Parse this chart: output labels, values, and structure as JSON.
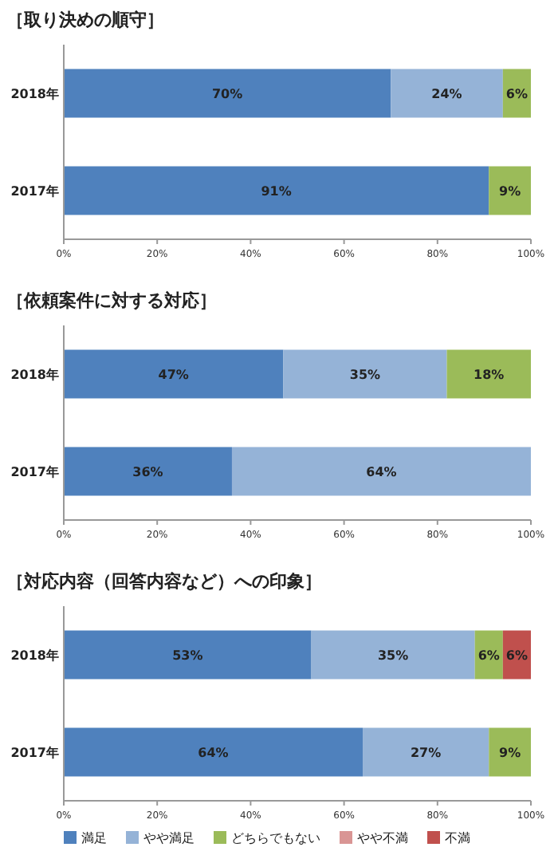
{
  "chart_data": [
    {
      "type": "bar",
      "orientation": "horizontal",
      "stacked": true,
      "title": "［取り決めの順守］",
      "categories": [
        "2018年",
        "2017年"
      ],
      "xlim": [
        0,
        100
      ],
      "xticks": [
        {
          "value": 0,
          "label": "0%"
        },
        {
          "value": 20,
          "label": "20%"
        },
        {
          "value": 40,
          "label": "40%"
        },
        {
          "value": 60,
          "label": "60%"
        },
        {
          "value": 80,
          "label": "80%"
        },
        {
          "value": 100,
          "label": "100%"
        }
      ],
      "legend": false,
      "series": [
        {
          "color": "#4f81bd",
          "values": [
            70,
            91
          ],
          "value_labels": [
            "70%",
            "91%"
          ]
        },
        {
          "color": "#95b3d7",
          "values": [
            24,
            null
          ],
          "value_labels": [
            "24%",
            null
          ]
        },
        {
          "color": "#9bbb59",
          "values": [
            6,
            9
          ],
          "value_labels": [
            "6%",
            "9%"
          ]
        }
      ]
    },
    {
      "type": "bar",
      "orientation": "horizontal",
      "stacked": true,
      "title": "［依頼案件に対する対応］",
      "categories": [
        "2018年",
        "2017年"
      ],
      "xlim": [
        0,
        100
      ],
      "xticks": [
        {
          "value": 0,
          "label": "0%"
        },
        {
          "value": 20,
          "label": "20%"
        },
        {
          "value": 40,
          "label": "40%"
        },
        {
          "value": 60,
          "label": "60%"
        },
        {
          "value": 80,
          "label": "80%"
        },
        {
          "value": 100,
          "label": "100%"
        }
      ],
      "legend": false,
      "series": [
        {
          "color": "#4f81bd",
          "values": [
            47,
            36
          ],
          "value_labels": [
            "47%",
            "36%"
          ]
        },
        {
          "color": "#95b3d7",
          "values": [
            35,
            64
          ],
          "value_labels": [
            "35%",
            "64%"
          ]
        },
        {
          "color": "#9bbb59",
          "values": [
            18,
            null
          ],
          "value_labels": [
            "18%",
            null
          ]
        }
      ]
    },
    {
      "type": "bar",
      "orientation": "horizontal",
      "stacked": true,
      "title": "［対応内容（回答内容など）への印象］",
      "categories": [
        "2018年",
        "2017年"
      ],
      "xlim": [
        0,
        100
      ],
      "xticks": [
        {
          "value": 0,
          "label": "0%"
        },
        {
          "value": 20,
          "label": "20%"
        },
        {
          "value": 40,
          "label": "40%"
        },
        {
          "value": 60,
          "label": "60%"
        },
        {
          "value": 80,
          "label": "80%"
        },
        {
          "value": 100,
          "label": "100%"
        }
      ],
      "legend": "bottom",
      "series": [
        {
          "name": "満足",
          "color": "#4f81bd",
          "values": [
            53,
            64
          ],
          "value_labels": [
            "53%",
            "64%"
          ]
        },
        {
          "name": "やや満足",
          "color": "#95b3d7",
          "values": [
            35,
            27
          ],
          "value_labels": [
            "35%",
            "27%"
          ]
        },
        {
          "name": "どちらでもない",
          "color": "#9bbb59",
          "values": [
            6,
            9
          ],
          "value_labels": [
            "6%",
            "9%"
          ]
        },
        {
          "name": "やや不満",
          "color": "#d99594",
          "values": [
            null,
            null
          ],
          "value_labels": [
            null,
            null
          ]
        },
        {
          "name": "不満",
          "color": "#c0504d",
          "values": [
            6,
            null
          ],
          "value_labels": [
            "6%",
            null
          ]
        }
      ]
    }
  ]
}
